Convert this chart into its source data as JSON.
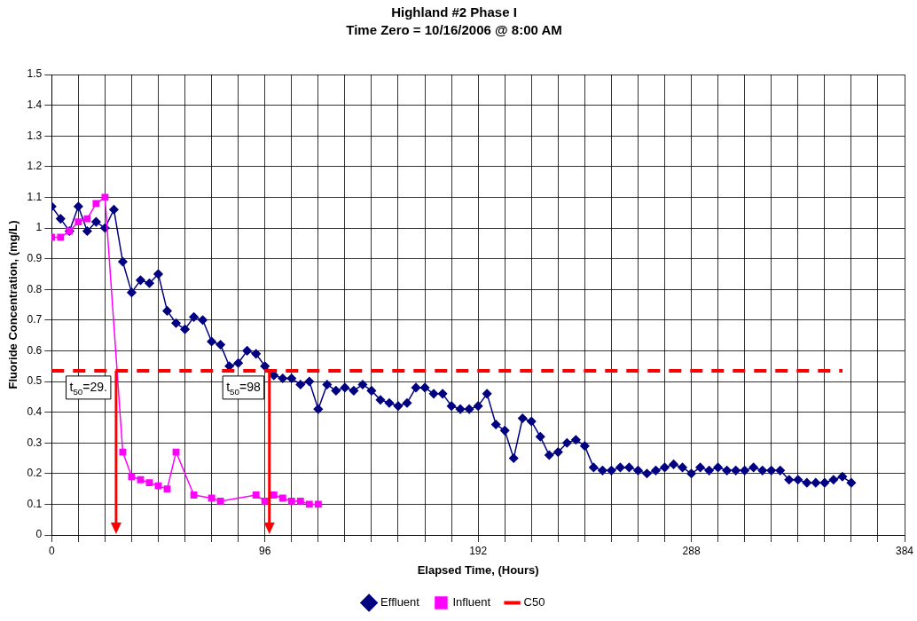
{
  "chart_data": {
    "type": "line",
    "title": "Highland #2 Phase I",
    "subtitle": "Time Zero = 10/16/2006 @ 8:00 AM",
    "xlabel": "Elapsed Time, (Hours)",
    "ylabel": "Fluoride Concentration, (mg/L)",
    "xlim": [
      0,
      384
    ],
    "xticks": [
      0,
      {
        "value": 12,
        "label": null
      },
      {
        "value": 24,
        "label": null
      },
      {
        "value": 36,
        "label": null
      },
      {
        "value": 48,
        "label": null
      },
      {
        "value": 60,
        "label": null
      },
      {
        "value": 72,
        "label": null
      },
      {
        "value": 84,
        "label": null
      },
      96,
      {
        "value": 108,
        "label": null
      },
      {
        "value": 120,
        "label": null
      },
      {
        "value": 132,
        "label": null
      },
      {
        "value": 144,
        "label": null
      },
      {
        "value": 156,
        "label": null
      },
      {
        "value": 168,
        "label": null
      },
      {
        "value": 180,
        "label": null
      },
      192,
      {
        "value": 204,
        "label": null
      },
      {
        "value": 216,
        "label": null
      },
      {
        "value": 228,
        "label": null
      },
      {
        "value": 240,
        "label": null
      },
      {
        "value": 252,
        "label": null
      },
      {
        "value": 264,
        "label": null
      },
      {
        "value": 276,
        "label": null
      },
      288,
      {
        "value": 300,
        "label": null
      },
      {
        "value": 312,
        "label": null
      },
      {
        "value": 324,
        "label": null
      },
      {
        "value": 336,
        "label": null
      },
      {
        "value": 348,
        "label": null
      },
      {
        "value": 360,
        "label": null
      },
      {
        "value": 372,
        "label": null
      },
      384
    ],
    "ylim": [
      0,
      1.5
    ],
    "yticks": [
      0,
      0.1,
      0.2,
      0.3,
      0.4,
      0.5,
      0.6,
      0.7,
      0.8,
      0.9,
      1,
      1.1,
      1.2,
      1.3,
      1.4,
      1.5
    ],
    "grid": true,
    "legend": "bottom",
    "series": [
      {
        "name": "Effluent",
        "color": "#000080",
        "marker": "diamond",
        "x": [
          0,
          4,
          8,
          12,
          16,
          20,
          24,
          28,
          32,
          36,
          40,
          44,
          48,
          52,
          56,
          60,
          64,
          68,
          72,
          76,
          80,
          84,
          88,
          92,
          96,
          100,
          104,
          108,
          112,
          116,
          120,
          124,
          128,
          132,
          136,
          140,
          144,
          148,
          152,
          156,
          160,
          164,
          168,
          172,
          176,
          180,
          184,
          188,
          192,
          196,
          200,
          204,
          208,
          212,
          216,
          220,
          224,
          228,
          232,
          236,
          240,
          244,
          248,
          252,
          256,
          260,
          264,
          268,
          272,
          276,
          280,
          284,
          288,
          292,
          296,
          300,
          304,
          308,
          312,
          316,
          320,
          324,
          328,
          332,
          336,
          340,
          344,
          348,
          352,
          356,
          360
        ],
        "values": [
          1.07,
          1.03,
          0.99,
          1.07,
          0.99,
          1.02,
          1.0,
          1.06,
          0.89,
          0.79,
          0.83,
          0.82,
          0.85,
          0.73,
          0.69,
          0.67,
          0.71,
          0.7,
          0.63,
          0.62,
          0.55,
          0.56,
          0.6,
          0.59,
          0.55,
          0.52,
          0.51,
          0.51,
          0.49,
          0.5,
          0.41,
          0.49,
          0.47,
          0.48,
          0.47,
          0.49,
          0.47,
          0.44,
          0.43,
          0.42,
          0.43,
          0.48,
          0.48,
          0.46,
          0.46,
          0.42,
          0.41,
          0.41,
          0.42,
          0.46,
          0.36,
          0.34,
          0.25,
          0.38,
          0.37,
          0.32,
          0.26,
          0.27,
          0.3,
          0.31,
          0.29,
          0.22,
          0.21,
          0.21,
          0.22,
          0.22,
          0.21,
          0.2,
          0.21,
          0.22,
          0.23,
          0.22,
          0.2,
          0.22,
          0.21,
          0.22,
          0.21,
          0.21,
          0.21,
          0.22,
          0.21,
          0.21,
          0.21,
          0.18,
          0.18,
          0.17,
          0.17,
          0.17,
          0.18,
          0.19,
          0.17
        ]
      },
      {
        "name": "Influent",
        "color": "#ff00ff",
        "marker": "square",
        "x": [
          0,
          4,
          8,
          12,
          16,
          20,
          24,
          32,
          36,
          40,
          44,
          48,
          52,
          56,
          64,
          72,
          76,
          92,
          96,
          100,
          104,
          108,
          112,
          116,
          120
        ],
        "values": [
          0.97,
          0.97,
          0.99,
          1.02,
          1.03,
          1.08,
          1.1,
          0.27,
          0.19,
          0.18,
          0.17,
          0.16,
          0.15,
          0.27,
          0.13,
          0.12,
          0.11,
          0.13,
          0.11,
          0.13,
          0.12,
          0.11,
          0.11,
          0.1,
          0.1
        ]
      }
    ],
    "ref_lines": [
      {
        "axis": "y",
        "value": 0.535,
        "label": "C50",
        "color": "#ff0000",
        "line_style": "dashed"
      }
    ],
    "annotations": [
      {
        "text": "t$_{50}$=29.",
        "x": 29,
        "y": 0.535
      },
      {
        "text": "t$_{50}$=98",
        "x": 98,
        "y": 0.535
      }
    ]
  }
}
